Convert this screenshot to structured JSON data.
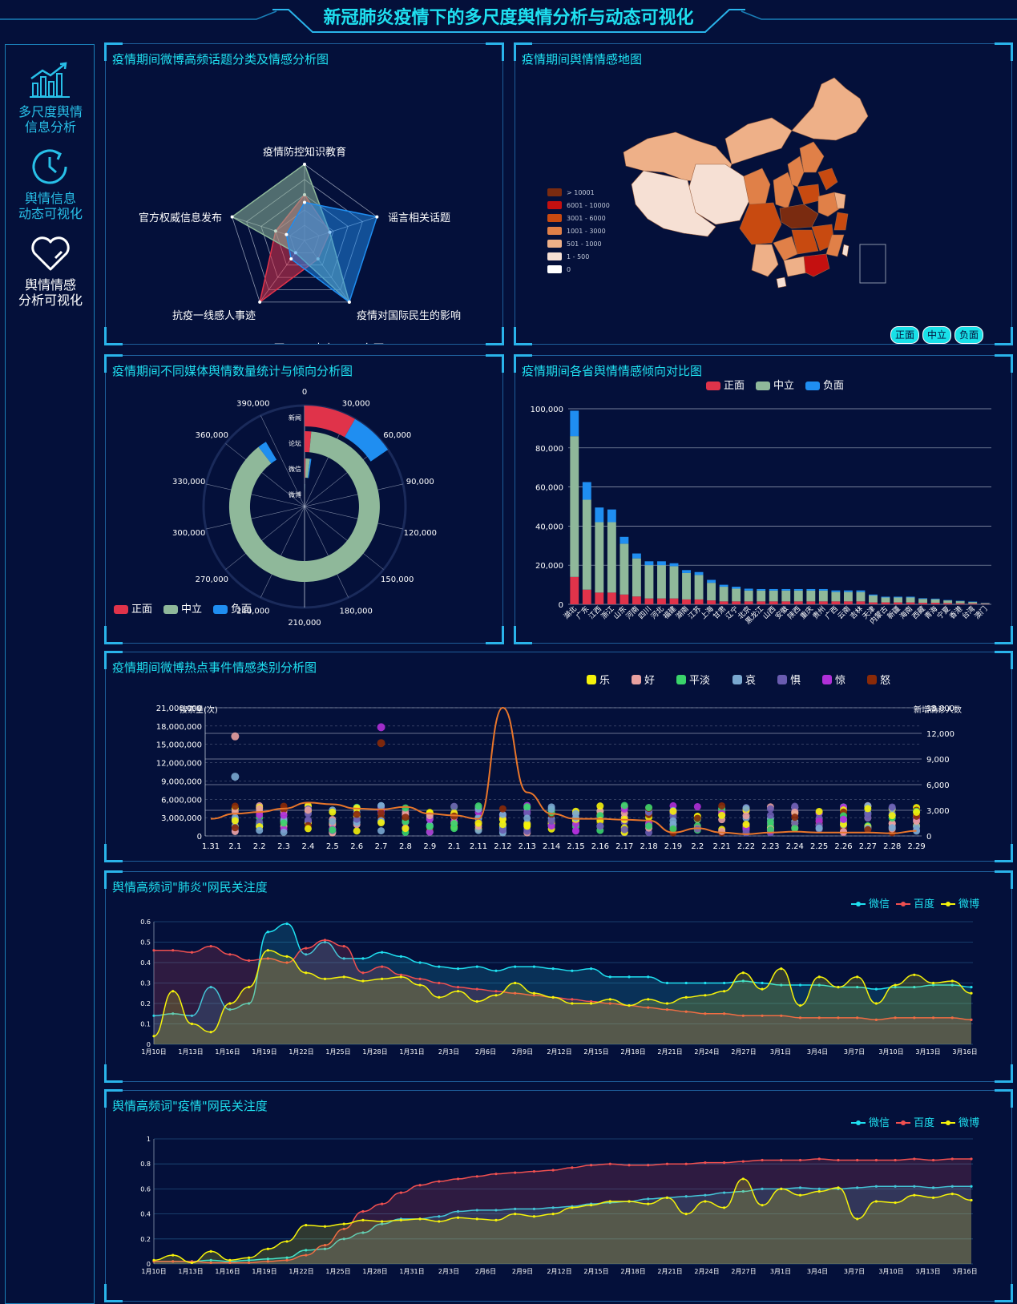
{
  "page": {
    "title": "新冠肺炎疫情下的多尺度舆情分析与动态可视化"
  },
  "sidebar": {
    "items": [
      {
        "label_line1": "多尺度舆情",
        "label_line2": "信息分析",
        "icon": "bar-chart-trend-icon"
      },
      {
        "label_line1": "舆情信息",
        "label_line2": "动态可视化",
        "icon": "clock-icon"
      },
      {
        "label_line1": "舆情情感",
        "label_line2": "分析可视化",
        "icon": "heart-icon"
      }
    ]
  },
  "colors": {
    "positive": "#e0334a",
    "neutral": "#8fb89a",
    "negative": "#1f8ef1",
    "accent": "#1fe0f0"
  },
  "radar": {
    "title": "疫情期间微博高频话题分类及情感分析图",
    "legend": [
      "正面",
      "中立",
      "负面"
    ]
  },
  "map": {
    "title": "疫情期间舆情情感地图",
    "legend": [
      "> 10001",
      "6001 - 10000",
      "3001 - 6000",
      "1001 - 3000",
      "501 - 1000",
      "1 - 500",
      "0"
    ],
    "legend_colors": [
      "#7a2b10",
      "#c41010",
      "#c84a10",
      "#e08048",
      "#eeb088",
      "#f6e0d4",
      "#ffffff"
    ],
    "buttons": [
      "正面",
      "中立",
      "负面"
    ]
  },
  "media": {
    "title": "疫情期间不同媒体舆情数量统计与倾向分析图",
    "legend": [
      "正面",
      "中立",
      "负面"
    ]
  },
  "province": {
    "title": "疫情期间各省舆情情感倾向对比图",
    "legend": [
      "正面",
      "中立",
      "负面"
    ]
  },
  "emotion": {
    "title": "疫情期间微博热点事件情感类别分析图",
    "legend": [
      "乐",
      "好",
      "平淡",
      "哀",
      "惧",
      "惊",
      "怒"
    ],
    "legend_colors": [
      "#f5f20a",
      "#e8a0a0",
      "#3ad46a",
      "#7aa8d0",
      "#6a5cb0",
      "#b030d8",
      "#8a2a08"
    ],
    "left_axis_label": "搜索量(次)",
    "right_axis_label": "新增确诊人数"
  },
  "pneumonia": {
    "title": "舆情高频词\"肺炎\"网民关注度",
    "legend": [
      "微信",
      "百度",
      "微博"
    ]
  },
  "epidemic": {
    "title": "舆情高频词\"疫情\"网民关注度",
    "legend": [
      "微信",
      "百度",
      "微博"
    ]
  },
  "chart_data": [
    {
      "type": "radar",
      "title": "疫情期间微博高频话题分类及情感分析图",
      "indicators": [
        "疫情防控知识教育",
        "谣言相关话题",
        "疫情对国际民生的影响",
        "抗疫一线感人事迹",
        "官方权威信息发布"
      ],
      "series": [
        {
          "name": "正面",
          "values": [
            0.6,
            0.35,
            0.3,
            1.0,
            0.4
          ]
        },
        {
          "name": "中立",
          "values": [
            1.0,
            0.35,
            1.0,
            0.2,
            1.0
          ]
        },
        {
          "name": "负面",
          "values": [
            0.5,
            1.0,
            1.0,
            0.3,
            0.25
          ]
        }
      ]
    },
    {
      "type": "bar",
      "subtype": "polar-stacked",
      "title": "疫情期间不同媒体舆情数量统计与倾向分析图",
      "categories": [
        "新闻",
        "论坛",
        "微信",
        "微博"
      ],
      "angle_ticks": [
        "0",
        "30,000",
        "60,000",
        "90,000",
        "120,000",
        "150,000",
        "180,000",
        "210,000",
        "240,000",
        "270,000",
        "300,000",
        "330,000",
        "360,000",
        "390,000"
      ],
      "angle_max": 420000,
      "series": [
        {
          "name": "正面",
          "values": [
            35000,
            6000,
            1500,
            500
          ]
        },
        {
          "name": "中立",
          "values": [
            0,
            370000,
            6000,
            1000
          ]
        },
        {
          "name": "负面",
          "values": [
            30000,
            8000,
            2000,
            300
          ]
        }
      ]
    },
    {
      "type": "bar",
      "subtype": "stacked",
      "title": "疫情期间各省舆情情感倾向对比图",
      "categories": [
        "湖北",
        "广东",
        "江西",
        "浙江",
        "山东",
        "河南",
        "四川",
        "河北",
        "福建",
        "湖南",
        "江苏",
        "上海",
        "甘肃",
        "辽宁",
        "北京",
        "黑龙江",
        "山西",
        "安徽",
        "陕西",
        "重庆",
        "贵州",
        "广西",
        "云南",
        "吉林",
        "天津",
        "内蒙古",
        "新疆",
        "海南",
        "西藏",
        "青海",
        "宁夏",
        "香港",
        "台湾",
        "澳门"
      ],
      "ylim": [
        0,
        100000
      ],
      "y_ticks": [
        "0",
        "20,000",
        "40,000",
        "60,000",
        "80,000",
        "100,000"
      ],
      "series": [
        {
          "name": "正面",
          "values": [
            14000,
            7500,
            6000,
            6000,
            5000,
            4000,
            3000,
            3000,
            3000,
            2500,
            2500,
            2000,
            1500,
            1500,
            1500,
            1500,
            1500,
            1500,
            1500,
            1500,
            1500,
            1500,
            1500,
            1500,
            1000,
            1000,
            1000,
            1000,
            800,
            800,
            600,
            500,
            400,
            200
          ]
        },
        {
          "name": "中立",
          "values": [
            72000,
            46000,
            36000,
            36000,
            26000,
            19500,
            17000,
            17000,
            16500,
            13500,
            12500,
            9000,
            7500,
            6500,
            5500,
            5500,
            5500,
            5500,
            5500,
            5500,
            5500,
            4800,
            4800,
            4800,
            3500,
            2500,
            2500,
            2500,
            2000,
            1800,
            1400,
            1100,
            800,
            400
          ]
        },
        {
          "name": "负面",
          "values": [
            13000,
            9000,
            7500,
            6500,
            3500,
            2500,
            2000,
            2000,
            1500,
            1500,
            1500,
            1500,
            1000,
            1000,
            1000,
            800,
            800,
            800,
            800,
            800,
            800,
            800,
            800,
            800,
            500,
            400,
            400,
            400,
            300,
            300,
            200,
            200,
            200,
            100
          ]
        }
      ]
    },
    {
      "type": "scatter",
      "title": "疫情期间微博热点事件情感类别分析图",
      "categories": [
        "1.31",
        "2.1",
        "2.2",
        "2.3",
        "2.4",
        "2.5",
        "2.6",
        "2.7",
        "2.8",
        "2.9",
        "2.1",
        "2.11",
        "2.12",
        "2.13",
        "2.14",
        "2.15",
        "2.16",
        "2.17",
        "2.18",
        "2.19",
        "2.2",
        "2.21",
        "2.22",
        "2.23",
        "2.24",
        "2.25",
        "2.26",
        "2.27",
        "2.28",
        "2.29"
      ],
      "y_left_ticks": [
        "0",
        "3,000,000",
        "6,000,000",
        "9,000,000",
        "12,000,000",
        "15,000,000",
        "18,000,000",
        "21,000,000"
      ],
      "y_right_ticks": [
        "0",
        "3,000",
        "6,000",
        "9,000",
        "12,000",
        "15,000"
      ],
      "ylim_left": [
        0,
        21000000
      ],
      "ylim_right": [
        0,
        15000
      ],
      "line_series": {
        "name": "新增确诊人数",
        "values": [
          2000,
          2600,
          2800,
          3200,
          3900,
          3700,
          3200,
          3100,
          3400,
          2600,
          2400,
          2000,
          15000,
          5100,
          2600,
          2000,
          2000,
          1900,
          1800,
          400,
          900,
          400,
          200,
          400,
          500,
          400,
          400,
          400,
          300,
          600
        ]
      },
      "highlights": [
        {
          "category": "2.1",
          "name": "好",
          "value": 16300000
        },
        {
          "category": "2.1",
          "name": "哀",
          "value": 9700000
        },
        {
          "category": "2.7",
          "name": "惊",
          "value": 17800000
        },
        {
          "category": "2.7",
          "name": "怒",
          "value": 15200000
        }
      ]
    },
    {
      "type": "line",
      "title": "舆情高频词\"肺炎\"网民关注度",
      "x_ticks": [
        "1月10日",
        "1月13日",
        "1月16日",
        "1月19日",
        "1月22日",
        "1月25日",
        "1月28日",
        "1月31日",
        "2月3日",
        "2月6日",
        "2月9日",
        "2月12日",
        "2月15日",
        "2月18日",
        "2月21日",
        "2月24日",
        "2月27日",
        "3月1日",
        "3月4日",
        "3月7日",
        "3月10日",
        "3月13日",
        "3月16日"
      ],
      "ylim": [
        0,
        0.6
      ],
      "y_ticks": [
        "0",
        "0.1",
        "0.2",
        "0.3",
        "0.4",
        "0.5",
        "0.6"
      ],
      "series": [
        {
          "name": "微信",
          "values": [
            0.14,
            0.15,
            0.14,
            0.28,
            0.17,
            0.2,
            0.55,
            0.59,
            0.44,
            0.5,
            0.42,
            0.42,
            0.45,
            0.43,
            0.4,
            0.38,
            0.37,
            0.38,
            0.36,
            0.38,
            0.38,
            0.37,
            0.36,
            0.37,
            0.33,
            0.33,
            0.33,
            0.3,
            0.3,
            0.3,
            0.3,
            0.31,
            0.3,
            0.29,
            0.29,
            0.29,
            0.28,
            0.28,
            0.27,
            0.28,
            0.28,
            0.29,
            0.29,
            0.28
          ]
        },
        {
          "name": "百度",
          "values": [
            0.46,
            0.46,
            0.45,
            0.48,
            0.44,
            0.41,
            0.42,
            0.4,
            0.47,
            0.51,
            0.48,
            0.35,
            0.38,
            0.34,
            0.32,
            0.3,
            0.28,
            0.27,
            0.26,
            0.25,
            0.24,
            0.23,
            0.22,
            0.21,
            0.2,
            0.19,
            0.18,
            0.17,
            0.16,
            0.15,
            0.15,
            0.14,
            0.14,
            0.14,
            0.13,
            0.13,
            0.13,
            0.13,
            0.12,
            0.13,
            0.13,
            0.13,
            0.13,
            0.12
          ]
        },
        {
          "name": "微博",
          "values": [
            0.04,
            0.26,
            0.1,
            0.06,
            0.2,
            0.28,
            0.46,
            0.43,
            0.35,
            0.32,
            0.33,
            0.31,
            0.32,
            0.33,
            0.29,
            0.23,
            0.26,
            0.21,
            0.24,
            0.3,
            0.25,
            0.23,
            0.2,
            0.2,
            0.22,
            0.19,
            0.22,
            0.2,
            0.23,
            0.24,
            0.26,
            0.35,
            0.27,
            0.37,
            0.19,
            0.33,
            0.28,
            0.33,
            0.2,
            0.29,
            0.34,
            0.3,
            0.31,
            0.25
          ]
        }
      ]
    },
    {
      "type": "line",
      "title": "舆情高频词\"疫情\"网民关注度",
      "x_ticks": [
        "1月10日",
        "1月13日",
        "1月16日",
        "1月19日",
        "1月22日",
        "1月25日",
        "1月28日",
        "1月31日",
        "2月3日",
        "2月6日",
        "2月9日",
        "2月12日",
        "2月15日",
        "2月18日",
        "2月21日",
        "2月24日",
        "2月27日",
        "3月1日",
        "3月4日",
        "3月7日",
        "3月10日",
        "3月13日",
        "3月16日"
      ],
      "ylim": [
        0,
        1
      ],
      "y_ticks": [
        "0",
        "0.2",
        "0.4",
        "0.6",
        "0.8",
        "1"
      ],
      "series": [
        {
          "name": "微信",
          "values": [
            0.02,
            0.02,
            0.02,
            0.03,
            0.02,
            0.03,
            0.04,
            0.05,
            0.11,
            0.12,
            0.2,
            0.25,
            0.32,
            0.36,
            0.36,
            0.38,
            0.42,
            0.43,
            0.43,
            0.44,
            0.44,
            0.45,
            0.46,
            0.48,
            0.49,
            0.5,
            0.52,
            0.53,
            0.54,
            0.55,
            0.57,
            0.58,
            0.6,
            0.6,
            0.61,
            0.6,
            0.6,
            0.61,
            0.62,
            0.62,
            0.62,
            0.61,
            0.62,
            0.62
          ]
        },
        {
          "name": "百度",
          "values": [
            0.02,
            0.02,
            0.02,
            0.01,
            0.01,
            0.01,
            0.02,
            0.03,
            0.07,
            0.15,
            0.28,
            0.42,
            0.48,
            0.57,
            0.63,
            0.66,
            0.68,
            0.7,
            0.72,
            0.73,
            0.74,
            0.75,
            0.77,
            0.79,
            0.8,
            0.79,
            0.79,
            0.8,
            0.8,
            0.81,
            0.81,
            0.82,
            0.83,
            0.83,
            0.83,
            0.84,
            0.83,
            0.83,
            0.83,
            0.83,
            0.84,
            0.83,
            0.84,
            0.84
          ]
        },
        {
          "name": "微博",
          "values": [
            0.03,
            0.07,
            0.01,
            0.1,
            0.03,
            0.05,
            0.12,
            0.18,
            0.31,
            0.3,
            0.32,
            0.35,
            0.34,
            0.35,
            0.36,
            0.34,
            0.37,
            0.36,
            0.35,
            0.4,
            0.38,
            0.4,
            0.45,
            0.47,
            0.5,
            0.5,
            0.48,
            0.53,
            0.4,
            0.5,
            0.45,
            0.68,
            0.47,
            0.6,
            0.55,
            0.58,
            0.61,
            0.36,
            0.5,
            0.49,
            0.55,
            0.53,
            0.56,
            0.51
          ]
        }
      ]
    }
  ]
}
